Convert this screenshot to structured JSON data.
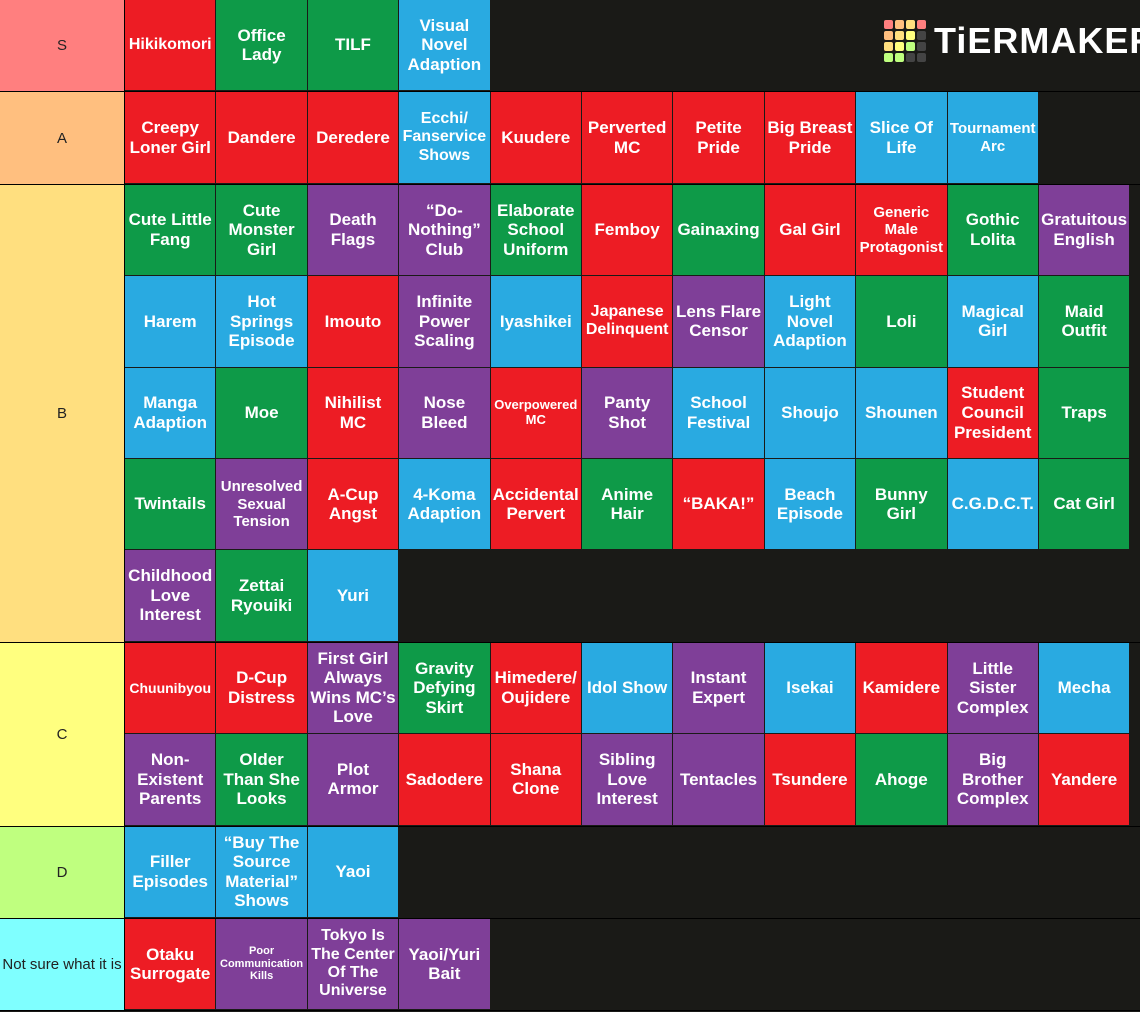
{
  "logo": "TiERMAKER",
  "tiers": [
    {
      "label": "S",
      "color": "#ff7f7f",
      "items": [
        {
          "text": "Hikikomori",
          "color": "#ed1c24"
        },
        {
          "text": "Office Lady",
          "color": "#0e9a48"
        },
        {
          "text": "TILF",
          "color": "#0e9a48"
        },
        {
          "text": "Visual Novel Adaption",
          "color": "#29aae1"
        }
      ]
    },
    {
      "label": "A",
      "color": "#ffbf7f",
      "items": [
        {
          "text": "Creepy Loner Girl",
          "color": "#ed1c24"
        },
        {
          "text": "Dandere",
          "color": "#ed1c24"
        },
        {
          "text": "Deredere",
          "color": "#ed1c24"
        },
        {
          "text": "Ecchi/ Fanservice Shows",
          "color": "#29aae1"
        },
        {
          "text": "Kuudere",
          "color": "#ed1c24"
        },
        {
          "text": "Perverted MC",
          "color": "#ed1c24"
        },
        {
          "text": "Petite Pride",
          "color": "#ed1c24"
        },
        {
          "text": "Big Breast Pride",
          "color": "#ed1c24"
        },
        {
          "text": "Slice Of Life",
          "color": "#29aae1"
        },
        {
          "text": "Tournament Arc",
          "color": "#29aae1"
        }
      ]
    },
    {
      "label": "B",
      "color": "#ffdf7f",
      "items": [
        {
          "text": "Cute Little Fang",
          "color": "#0e9a48"
        },
        {
          "text": "Cute Monster Girl",
          "color": "#0e9a48"
        },
        {
          "text": "Death Flags",
          "color": "#7f3f98"
        },
        {
          "text": "“Do-Nothing” Club",
          "color": "#7f3f98"
        },
        {
          "text": "Elaborate School Uniform",
          "color": "#0e9a48"
        },
        {
          "text": "Femboy",
          "color": "#ed1c24"
        },
        {
          "text": "Gainaxing",
          "color": "#0e9a48"
        },
        {
          "text": "Gal Girl",
          "color": "#ed1c24"
        },
        {
          "text": "Generic Male Protagonist",
          "color": "#ed1c24"
        },
        {
          "text": "Gothic Lolita",
          "color": "#0e9a48"
        },
        {
          "text": "Gratuitous English",
          "color": "#7f3f98"
        },
        {
          "text": "Harem",
          "color": "#29aae1"
        },
        {
          "text": "Hot Springs Episode",
          "color": "#29aae1"
        },
        {
          "text": "Imouto",
          "color": "#ed1c24"
        },
        {
          "text": "Infinite Power Scaling",
          "color": "#7f3f98"
        },
        {
          "text": "Iyashikei",
          "color": "#29aae1"
        },
        {
          "text": "Japanese Delinquent",
          "color": "#ed1c24"
        },
        {
          "text": "Lens Flare Censor",
          "color": "#7f3f98"
        },
        {
          "text": "Light Novel Adaption",
          "color": "#29aae1"
        },
        {
          "text": "Loli",
          "color": "#0e9a48"
        },
        {
          "text": "Magical Girl",
          "color": "#29aae1"
        },
        {
          "text": "Maid Outfit",
          "color": "#0e9a48"
        },
        {
          "text": "Manga Adaption",
          "color": "#29aae1"
        },
        {
          "text": "Moe",
          "color": "#0e9a48"
        },
        {
          "text": "Nihilist MC",
          "color": "#ed1c24"
        },
        {
          "text": "Nose Bleed",
          "color": "#7f3f98"
        },
        {
          "text": "Overpowered MC",
          "color": "#ed1c24"
        },
        {
          "text": "Panty Shot",
          "color": "#7f3f98"
        },
        {
          "text": "School Festival",
          "color": "#29aae1"
        },
        {
          "text": "Shoujo",
          "color": "#29aae1"
        },
        {
          "text": "Shounen",
          "color": "#29aae1"
        },
        {
          "text": "Student Council President",
          "color": "#ed1c24"
        },
        {
          "text": "Traps",
          "color": "#0e9a48"
        },
        {
          "text": "Twintails",
          "color": "#0e9a48"
        },
        {
          "text": "Unresolved Sexual Tension",
          "color": "#7f3f98"
        },
        {
          "text": "A-Cup Angst",
          "color": "#ed1c24"
        },
        {
          "text": "4-Koma Adaption",
          "color": "#29aae1"
        },
        {
          "text": "Accidental Pervert",
          "color": "#ed1c24"
        },
        {
          "text": "Anime Hair",
          "color": "#0e9a48"
        },
        {
          "text": "“BAKA!”",
          "color": "#ed1c24"
        },
        {
          "text": "Beach Episode",
          "color": "#29aae1"
        },
        {
          "text": "Bunny Girl",
          "color": "#0e9a48"
        },
        {
          "text": "C.G.D.C.T.",
          "color": "#29aae1"
        },
        {
          "text": "Cat Girl",
          "color": "#0e9a48"
        },
        {
          "text": "Childhood Love Interest",
          "color": "#7f3f98"
        },
        {
          "text": "Zettai Ryouiki",
          "color": "#0e9a48"
        },
        {
          "text": "Yuri",
          "color": "#29aae1"
        }
      ]
    },
    {
      "label": "C",
      "color": "#ffff7f",
      "items": [
        {
          "text": "Chuunibyou",
          "color": "#ed1c24"
        },
        {
          "text": "D-Cup Distress",
          "color": "#ed1c24"
        },
        {
          "text": "First Girl Always Wins MC’s Love",
          "color": "#7f3f98"
        },
        {
          "text": "Gravity Defying Skirt",
          "color": "#0e9a48"
        },
        {
          "text": "Himedere/ Oujidere",
          "color": "#ed1c24"
        },
        {
          "text": "Idol Show",
          "color": "#29aae1"
        },
        {
          "text": "Instant Expert",
          "color": "#7f3f98"
        },
        {
          "text": "Isekai",
          "color": "#29aae1"
        },
        {
          "text": "Kamidere",
          "color": "#ed1c24"
        },
        {
          "text": "Little Sister Complex",
          "color": "#7f3f98"
        },
        {
          "text": "Mecha",
          "color": "#29aae1"
        },
        {
          "text": "Non-Existent Parents",
          "color": "#7f3f98"
        },
        {
          "text": "Older Than She Looks",
          "color": "#0e9a48"
        },
        {
          "text": "Plot Armor",
          "color": "#7f3f98"
        },
        {
          "text": "Sadodere",
          "color": "#ed1c24"
        },
        {
          "text": "Shana Clone",
          "color": "#ed1c24"
        },
        {
          "text": "Sibling Love Interest",
          "color": "#7f3f98"
        },
        {
          "text": "Tentacles",
          "color": "#7f3f98"
        },
        {
          "text": "Tsundere",
          "color": "#ed1c24"
        },
        {
          "text": "Ahoge",
          "color": "#0e9a48"
        },
        {
          "text": "Big Brother Complex",
          "color": "#7f3f98"
        },
        {
          "text": "Yandere",
          "color": "#ed1c24"
        }
      ]
    },
    {
      "label": "D",
      "color": "#bfff7f",
      "items": [
        {
          "text": "Filler Episodes",
          "color": "#29aae1"
        },
        {
          "text": "“Buy The Source Material” Shows",
          "color": "#29aae1"
        },
        {
          "text": "Yaoi",
          "color": "#29aae1"
        }
      ]
    },
    {
      "label": "Not sure what it is",
      "color": "#7fffff",
      "items": [
        {
          "text": "Otaku Surrogate",
          "color": "#ed1c24"
        },
        {
          "text": "Poor Communication Kills",
          "color": "#7f3f98"
        },
        {
          "text": "Tokyo Is The Center Of The Universe",
          "color": "#7f3f98"
        },
        {
          "text": "Yaoi/Yuri Bait",
          "color": "#7f3f98"
        }
      ]
    }
  ]
}
